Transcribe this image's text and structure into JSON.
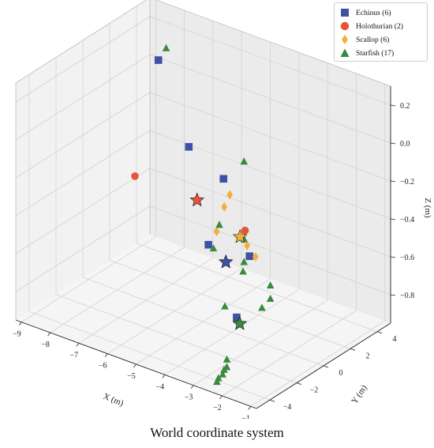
{
  "chart_data": {
    "type": "scatter",
    "projection": "3d",
    "caption": "World coordinate system",
    "xlabel": "X  (m)",
    "ylabel": "Y  (m)",
    "zlabel": "Z  (m)",
    "xlim": [
      -9.2,
      -0.8
    ],
    "ylim": [
      -5.0,
      5.0
    ],
    "zlim": [
      -0.95,
      0.3
    ],
    "xticks": [
      -9,
      -8,
      -7,
      -6,
      -5,
      -4,
      -3,
      -2,
      -1
    ],
    "yticks": [
      -4,
      -2,
      0,
      2,
      4
    ],
    "zticks": [
      -0.8,
      -0.6,
      -0.4,
      -0.2,
      0.0,
      0.2
    ],
    "xtick_labels": [
      "−9",
      "−8",
      "−7",
      "−6",
      "−5",
      "−4",
      "−3",
      "−2",
      "−1"
    ],
    "ytick_labels": [
      "−4",
      "−2",
      "0",
      "2",
      "4"
    ],
    "ztick_labels": [
      "−0.8",
      "−0.6",
      "−0.4",
      "−0.2",
      "0.0",
      "0.2"
    ],
    "grid": true,
    "legend_position": "top-right",
    "series": [
      {
        "name": "Echinus (6)",
        "marker": "square",
        "color": "#3f51a3",
        "points": [
          [
            -7.5,
            2.0,
            0.2
          ],
          [
            -4.8,
            -1.5,
            0.05
          ],
          [
            -4.9,
            1.3,
            -0.25
          ],
          [
            -3.6,
            -2.6,
            -0.35
          ],
          [
            -2.1,
            -3.7,
            -0.6
          ],
          [
            -4.6,
            2.6,
            -0.7
          ]
        ],
        "centroid": [
          -3.6,
          -1.3,
          -0.5
        ]
      },
      {
        "name": "Holothurian (2)",
        "marker": "circle",
        "color": "#e5533b",
        "points": [
          [
            -8.6,
            2.6,
            -0.5
          ],
          [
            -1.9,
            -3.5,
            -0.14
          ]
        ],
        "centroid": [
          -5.4,
          0.4,
          -0.35
        ]
      },
      {
        "name": "Scallop (6)",
        "marker": "diamond",
        "color": "#f5ad3c",
        "points": [
          [
            -4.4,
            0.7,
            -0.28
          ],
          [
            -4.5,
            0.5,
            -0.34
          ],
          [
            -5.0,
            1.0,
            -0.52
          ],
          [
            -3.9,
            0.6,
            -0.48
          ],
          [
            -3.7,
            0.5,
            -0.5
          ],
          [
            -2.8,
            -0.8,
            -0.45
          ]
        ],
        "centroid": [
          -3.9,
          0.4,
          -0.46
        ]
      },
      {
        "name": "Starfish (17)",
        "marker": "triangle",
        "color": "#3a8a3e",
        "points": [
          [
            -8.4,
            4.5,
            0.1
          ],
          [
            -3.2,
            -0.8,
            0.03
          ],
          [
            -3.2,
            -0.8,
            -0.38
          ],
          [
            -3.2,
            -0.8,
            -0.5
          ],
          [
            -2.0,
            -1.4,
            -0.53
          ],
          [
            -2.0,
            -1.4,
            -0.6
          ],
          [
            -2.2,
            -1.6,
            -0.65
          ],
          [
            -5.7,
            2.7,
            -0.6
          ],
          [
            -6.0,
            2.9,
            -0.75
          ],
          [
            -3.4,
            -1.8,
            -0.7
          ],
          [
            -5.2,
            3.4,
            -0.85
          ],
          [
            -2.3,
            -4.0,
            -0.82
          ],
          [
            -2.3,
            -4.0,
            -0.86
          ],
          [
            -2.4,
            -4.1,
            -0.9
          ],
          [
            -2.4,
            -4.0,
            -0.88
          ],
          [
            -2.6,
            -4.1,
            -0.95
          ],
          [
            -2.5,
            -4.2,
            -0.92
          ]
        ],
        "centroid": [
          -2.6,
          -2.4,
          -0.72
        ]
      }
    ]
  },
  "legend": {
    "entries": [
      {
        "label": "Echinus (6)",
        "marker": "square",
        "color": "#3f51a3"
      },
      {
        "label": "Holothurian (2)",
        "marker": "circle",
        "color": "#e5533b"
      },
      {
        "label": "Scallop (6)",
        "marker": "diamond",
        "color": "#f5ad3c"
      },
      {
        "label": "Starfish (17)",
        "marker": "triangle",
        "color": "#3a8a3e"
      }
    ]
  }
}
